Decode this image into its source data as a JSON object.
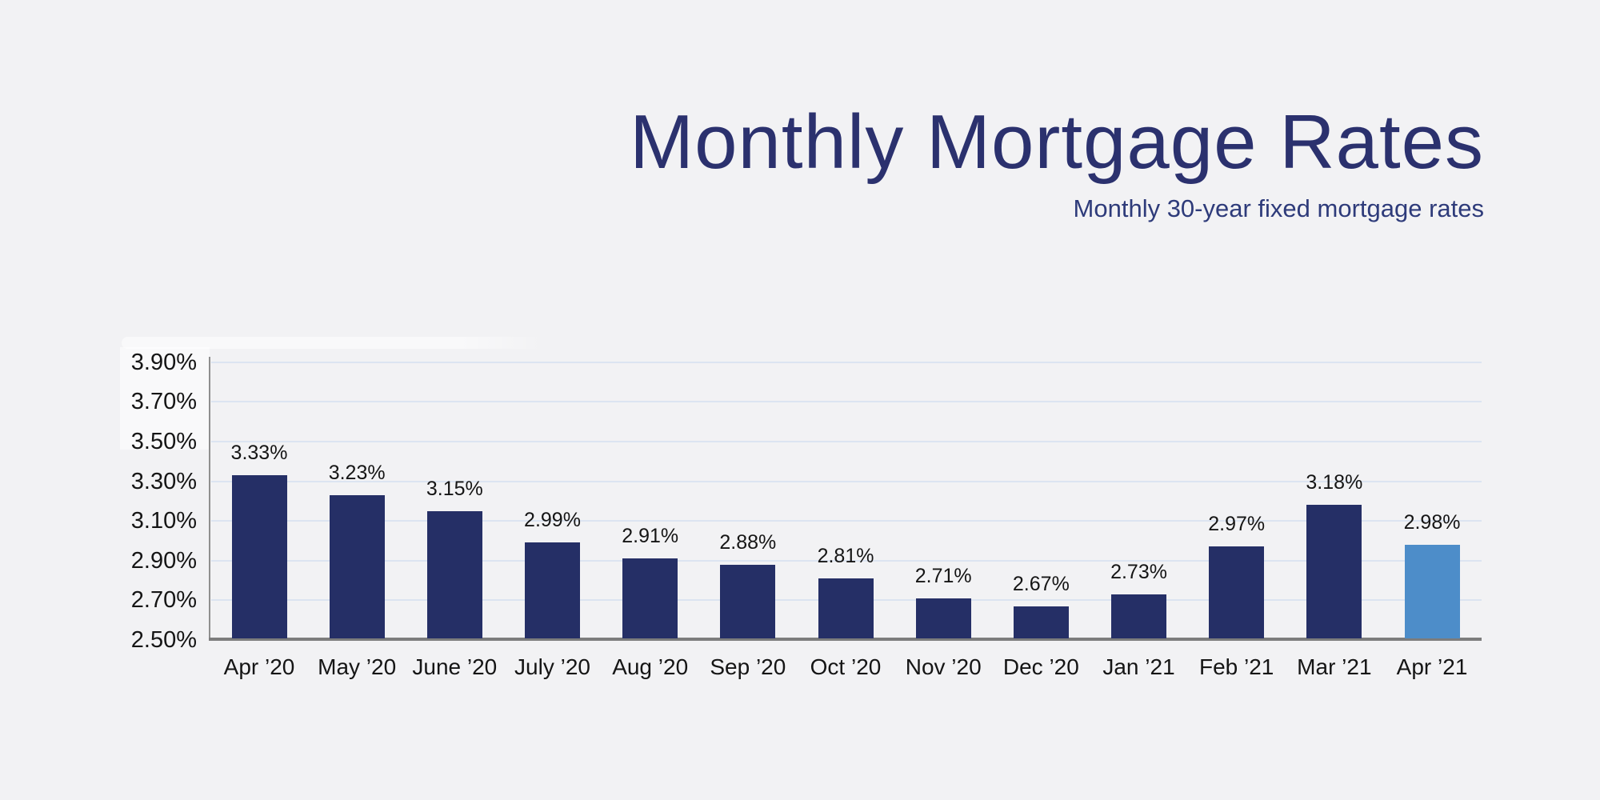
{
  "background": "#f2f2f4",
  "chart_data": {
    "type": "bar",
    "title": "Monthly Mortgage Rates",
    "subtitle": "Monthly 30-year fixed mortgage rates",
    "categories": [
      "Apr ’20",
      "May ’20",
      "June ’20",
      "July ’20",
      "Aug ’20",
      "Sep ’20",
      "Oct ’20",
      "Nov ’20",
      "Dec ’20",
      "Jan ’21",
      "Feb ’21",
      "Mar ’21",
      "Apr ’21"
    ],
    "values": [
      3.33,
      3.23,
      3.15,
      2.99,
      2.91,
      2.88,
      2.81,
      2.71,
      2.67,
      2.73,
      2.97,
      3.18,
      2.98
    ],
    "data_labels": [
      "3.33%",
      "3.23%",
      "3.15%",
      "2.99%",
      "2.91%",
      "2.88%",
      "2.81%",
      "2.71%",
      "2.67%",
      "2.73%",
      "2.97%",
      "3.18%",
      "2.98%"
    ],
    "y_ticks": [
      "3.90%",
      "3.70%",
      "3.50%",
      "3.30%",
      "3.10%",
      "2.90%",
      "2.70%",
      "2.50%"
    ],
    "ylim": [
      2.5,
      3.9
    ],
    "grid": true,
    "legend": false,
    "xlabel": "",
    "ylabel": "",
    "highlight_index": 12,
    "colors": {
      "bar": "#252f66",
      "highlight_bar": "#4d8dc9",
      "title": "#2b316e",
      "subtitle": "#2e3b7a",
      "gridline": "#dce4f1",
      "y_axis": "#8f8f8f",
      "x_axis": "#7d7d7d",
      "tick_text": "#151515",
      "background": "#f2f2f4"
    }
  }
}
